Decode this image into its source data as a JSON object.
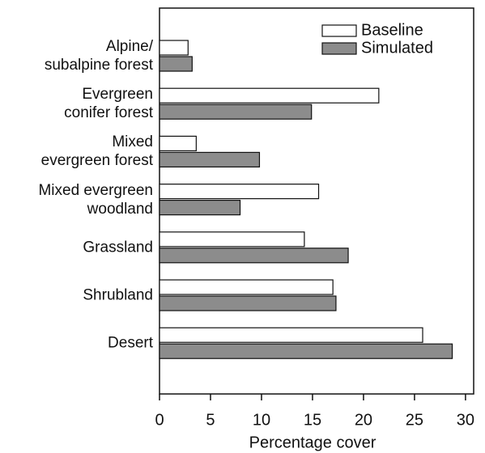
{
  "chart_data": {
    "type": "hbar",
    "xlabel": "Percentage cover",
    "categories": [
      "Alpine/\nsubalpine forest",
      "Evergreen\nconifer forest",
      "Mixed\nevergreen forest",
      "Mixed evergreen\nwoodland",
      "Grassland",
      "Shrubland",
      "Desert"
    ],
    "series": [
      {
        "name": "Baseline",
        "color": "#ffffff",
        "values": [
          2.8,
          21.5,
          3.6,
          15.6,
          14.2,
          17.0,
          25.8
        ]
      },
      {
        "name": "Simulated",
        "color": "#8c8c8c",
        "values": [
          3.2,
          14.9,
          9.8,
          7.9,
          18.5,
          17.3,
          28.7
        ]
      }
    ],
    "xlim": [
      0,
      30.8
    ],
    "xticks": [
      0,
      5,
      10,
      15,
      20,
      25,
      30
    ],
    "legend": "upper right"
  }
}
